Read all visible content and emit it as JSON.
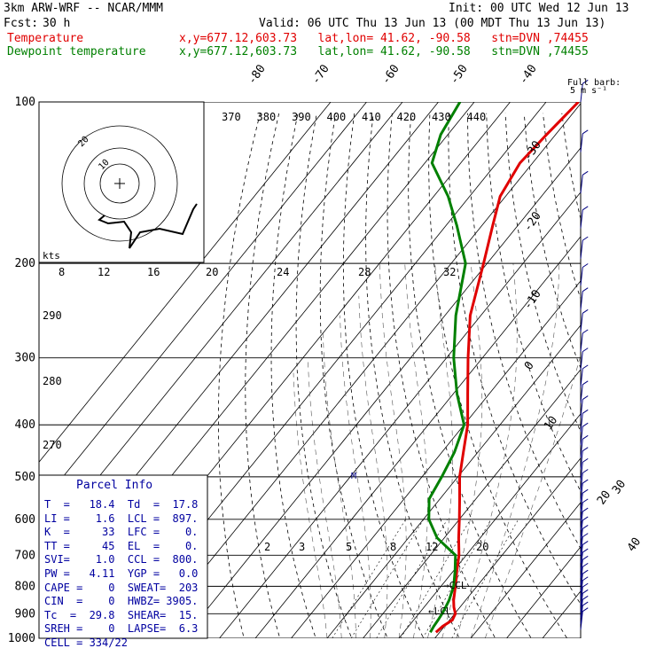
{
  "header": {
    "title": "3km ARW-WRF -- NCAR/MMM",
    "init": "Init: 00 UTC Wed 12 Jun 13",
    "fcst_label": "Fcst:",
    "fcst_value": "30 h",
    "valid": "Valid: 06 UTC Thu 13 Jun 13 (00 MDT Thu 13 Jun 13)",
    "temp_label": "Temperature",
    "dew_label": "Dewpoint temperature",
    "location": "x,y=677.12,603.73   lat,lon= 41.62, -90.58   stn=DVN ,74455",
    "barb_legend_1": "Full barb:",
    "barb_legend_2": "5 m s⁻¹"
  },
  "colors": {
    "temperature": "#e00000",
    "dewpoint": "#008000",
    "parcel_info": "#0000a0",
    "wind_barbs": "#000080"
  },
  "parcel": {
    "title": "Parcel Info",
    "rows": [
      [
        "T  =   18.4",
        "Td  =  17.8"
      ],
      [
        "LI =    1.6",
        "LCL =  897."
      ],
      [
        "K  =     33",
        "LFC =    0."
      ],
      [
        "TT =     45",
        "EL  =    0."
      ],
      [
        "SVI=    1.0",
        "CCL =  800."
      ],
      [
        "PW =   4.11",
        "YGP =   0.0"
      ],
      [
        "CAPE =    0",
        "SWEAT=  203"
      ],
      [
        "CIN  =    0",
        "HWBZ= 3905."
      ],
      [
        "Tc  =  29.8",
        "SHEAR=  15."
      ],
      [
        "SREH =    0",
        "LAPSE=  6.3"
      ],
      [
        "CELL = 334/22",
        ""
      ]
    ]
  },
  "chart_data": {
    "type": "line",
    "subtype": "skew-T log-p sounding",
    "y_label": "pressure (hPa)",
    "pressure_ticks": [
      "100",
      "200",
      "300",
      "400",
      "500",
      "600",
      "700",
      "800",
      "900",
      "1000"
    ],
    "isotherm_labels": [
      "-80",
      "-70",
      "-60",
      "-50",
      "-40",
      "-30",
      "-20",
      "-10",
      "0",
      "10",
      "20",
      "30",
      "40"
    ],
    "theta_e_labels": [
      "370",
      "380",
      "390",
      "400",
      "410",
      "420",
      "430",
      "440"
    ],
    "theta_labels": [
      "290",
      "280",
      "270"
    ],
    "mixing_ratio_labels": [
      "2",
      "3",
      "5",
      "8",
      "12",
      "20"
    ],
    "hodograph_speed_labels": [
      "8",
      "12",
      "16",
      "20",
      "24",
      "28",
      "32"
    ],
    "hodograph_units": "kts",
    "hodograph_ring_labels": [
      "20",
      "10"
    ],
    "series": [
      {
        "name": "Temperature",
        "var": "T",
        "pressure": [
          975,
          950,
          925,
          900,
          875,
          850,
          800,
          750,
          700,
          650,
          600,
          550,
          500,
          450,
          400,
          350,
          300,
          250,
          200,
          170,
          150,
          130,
          115,
          100
        ],
        "values": [
          19.0,
          19.5,
          20.8,
          20.2,
          18.3,
          16.7,
          14.0,
          11.0,
          8.0,
          4.0,
          0.0,
          -4.5,
          -9.5,
          -14.0,
          -19.0,
          -26.0,
          -34.0,
          -43.0,
          -51.0,
          -57.0,
          -61.5,
          -63.5,
          -62.5,
          -61.0
        ]
      },
      {
        "name": "Dewpoint temperature",
        "var": "Td",
        "pressure": [
          975,
          950,
          925,
          900,
          875,
          850,
          800,
          750,
          700,
          650,
          600,
          550,
          500,
          450,
          400,
          350,
          300,
          250,
          200,
          170,
          150,
          130,
          115,
          100
        ],
        "values": [
          17.4,
          17.0,
          16.8,
          16.5,
          16.0,
          15.4,
          13.5,
          10.5,
          7.0,
          -2.0,
          -8.5,
          -13.0,
          -14.5,
          -16.5,
          -20.0,
          -29.0,
          -38.0,
          -47.0,
          -56.0,
          -67.0,
          -76.0,
          -88.0,
          -92.0,
          -94.0
        ]
      }
    ],
    "annotations": [
      "CCL",
      "LCL",
      "M"
    ]
  }
}
